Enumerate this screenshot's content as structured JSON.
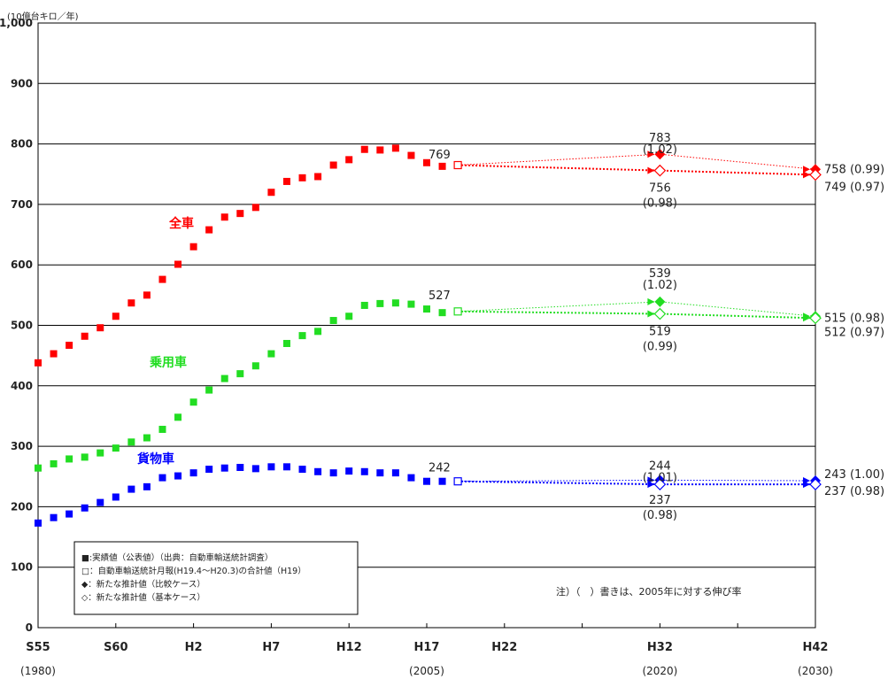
{
  "chart_data": {
    "type": "scatter",
    "unit_label": "(10億台キロ／年)",
    "ylim": [
      0,
      1000
    ],
    "y_ticks": [
      "0",
      "100",
      "200",
      "300",
      "400",
      "500",
      "600",
      "700",
      "800",
      "900",
      "1,000"
    ],
    "x_ticks": [
      {
        "label": "S55",
        "x": 1980,
        "year": "(1980)"
      },
      {
        "label": "S60",
        "x": 1985
      },
      {
        "label": "H2",
        "x": 1990
      },
      {
        "label": "H7",
        "x": 1995
      },
      {
        "label": "H12",
        "x": 2000
      },
      {
        "label": "H17",
        "x": 2005,
        "year": "(2005)"
      },
      {
        "label": "H22",
        "x": 2010
      },
      {
        "label": "H32",
        "x": 2020,
        "year": "(2020)"
      },
      {
        "label": "H42",
        "x": 2030,
        "year": "(2030)"
      }
    ],
    "xlim": [
      1980,
      2030
    ],
    "series": [
      {
        "name": "全車",
        "color": "#ff0000",
        "actual_x": [
          1980,
          1981,
          1982,
          1983,
          1984,
          1985,
          1986,
          1987,
          1988,
          1989,
          1990,
          1991,
          1992,
          1993,
          1994,
          1995,
          1996,
          1997,
          1998,
          1999,
          2000,
          2001,
          2002,
          2003,
          2004,
          2005,
          2006
        ],
        "actual_y": [
          438,
          453,
          467,
          482,
          496,
          515,
          537,
          550,
          576,
          601,
          630,
          658,
          679,
          685,
          695,
          720,
          738,
          744,
          746,
          765,
          774,
          791,
          790,
          793,
          781,
          769,
          763
        ],
        "monthly": {
          "x": 2007,
          "y": 765
        },
        "comparison": [
          {
            "x": 2020,
            "y": 783
          },
          {
            "x": 2030,
            "y": 758
          }
        ],
        "base": [
          {
            "x": 2020,
            "y": 756
          },
          {
            "x": 2030,
            "y": 749
          }
        ],
        "labels": {
          "actual": "769",
          "comp_2020": "783",
          "comp_2020_ratio": "(1.02)",
          "base_2020": "756",
          "base_2020_ratio": "(0.98)",
          "comp_2030": "758 (0.99)",
          "base_2030": "749 (0.97)"
        }
      },
      {
        "name": "乗用車",
        "color": "#22dd22",
        "actual_x": [
          1980,
          1981,
          1982,
          1983,
          1984,
          1985,
          1986,
          1987,
          1988,
          1989,
          1990,
          1991,
          1992,
          1993,
          1994,
          1995,
          1996,
          1997,
          1998,
          1999,
          2000,
          2001,
          2002,
          2003,
          2004,
          2005,
          2006
        ],
        "actual_y": [
          264,
          271,
          279,
          282,
          289,
          297,
          307,
          314,
          328,
          348,
          373,
          393,
          412,
          420,
          433,
          453,
          470,
          483,
          490,
          508,
          515,
          533,
          536,
          537,
          535,
          527,
          521
        ],
        "monthly": {
          "x": 2007,
          "y": 523
        },
        "comparison": [
          {
            "x": 2020,
            "y": 539
          },
          {
            "x": 2030,
            "y": 515
          }
        ],
        "base": [
          {
            "x": 2020,
            "y": 519
          },
          {
            "x": 2030,
            "y": 512
          }
        ],
        "labels": {
          "actual": "527",
          "comp_2020": "539",
          "comp_2020_ratio": "(1.02)",
          "base_2020": "519",
          "base_2020_ratio": "(0.99)",
          "comp_2030": "515 (0.98)",
          "base_2030": "512 (0.97)"
        }
      },
      {
        "name": "貨物車",
        "color": "#0000ff",
        "actual_x": [
          1980,
          1981,
          1982,
          1983,
          1984,
          1985,
          1986,
          1987,
          1988,
          1989,
          1990,
          1991,
          1992,
          1993,
          1994,
          1995,
          1996,
          1997,
          1998,
          1999,
          2000,
          2001,
          2002,
          2003,
          2004,
          2005,
          2006
        ],
        "actual_y": [
          173,
          182,
          188,
          198,
          207,
          216,
          229,
          233,
          248,
          251,
          256,
          262,
          264,
          265,
          263,
          266,
          266,
          262,
          258,
          256,
          259,
          258,
          256,
          256,
          248,
          242,
          242
        ],
        "monthly": {
          "x": 2007,
          "y": 242
        },
        "comparison": [
          {
            "x": 2020,
            "y": 244
          },
          {
            "x": 2030,
            "y": 243
          }
        ],
        "base": [
          {
            "x": 2020,
            "y": 237
          },
          {
            "x": 2030,
            "y": 237
          }
        ],
        "labels": {
          "actual": "242",
          "comp_2020": "244",
          "comp_2020_ratio": "(1.01)",
          "base_2020": "237",
          "base_2020_ratio": "(0.98)",
          "comp_2030": "243 (1.00)",
          "base_2030": "237 (0.98)"
        }
      }
    ],
    "legend": [
      {
        "symbol": "filled-square",
        "text": "■:実績値（公表値）（出典：自動車輸送統計調査）"
      },
      {
        "symbol": "open-square",
        "text": "□：自動車輸送統計月報(H19.4～H20.3)の合計値（H19）"
      },
      {
        "symbol": "filled-diamond",
        "text": "◆：新たな推計値（比較ケース）"
      },
      {
        "symbol": "open-diamond",
        "text": "◇：新たな推計値（基本ケース）"
      }
    ],
    "note": "注）（　）書きは、2005年に対する伸び率"
  }
}
